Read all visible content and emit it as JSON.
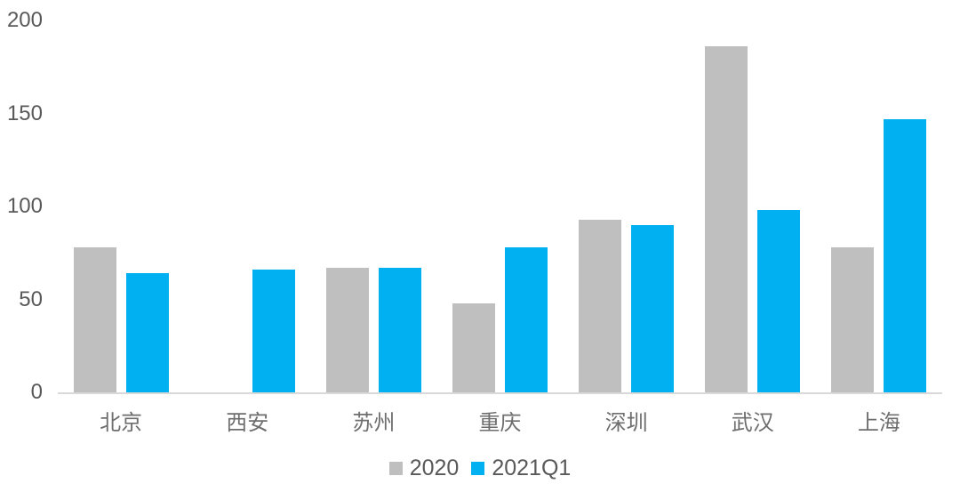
{
  "chart_data": {
    "type": "bar",
    "title": "",
    "xlabel": "",
    "ylabel": "",
    "categories": [
      "北京",
      "西安",
      "苏州",
      "重庆",
      "深圳",
      "武汉",
      "上海"
    ],
    "series": [
      {
        "name": "2020",
        "color": "#BFBFBF",
        "values": [
          78,
          0,
          67,
          48,
          93,
          186,
          78
        ]
      },
      {
        "name": "2021Q1",
        "color": "#00B0F0",
        "values": [
          64,
          66,
          67,
          78,
          90,
          98,
          147
        ]
      }
    ],
    "ylim": [
      0,
      200
    ],
    "yticks": [
      0,
      50,
      100,
      150,
      200
    ],
    "grid": false,
    "legend_position": "bottom-center"
  },
  "colors": {
    "background": "#FFFFFF",
    "axis_line": "#D9D9D9",
    "tick_text": "#595959",
    "category_text": "#6E6E6E",
    "legend_text": "#595959"
  }
}
